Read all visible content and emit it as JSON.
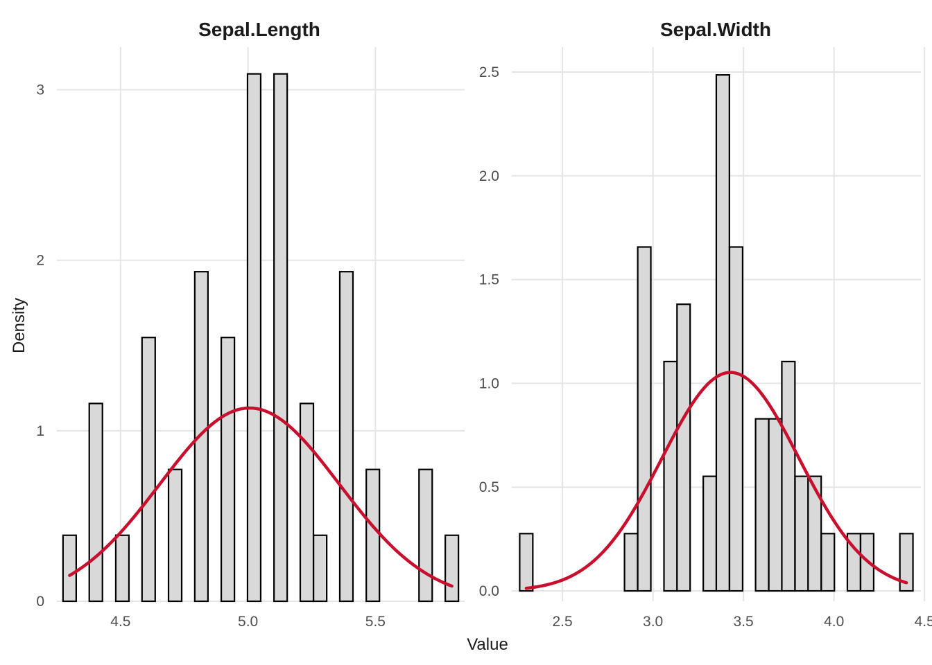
{
  "chart_data": [
    {
      "type": "bar",
      "title": "Sepal.Length",
      "xlabel": "Value",
      "ylabel": "Density",
      "xlim": [
        4.25,
        5.85
      ],
      "ylim": [
        0,
        3.25
      ],
      "x_ticks": [
        4.5,
        5.0,
        5.5
      ],
      "x_tick_labels": [
        "4.5",
        "5.0",
        "5.5"
      ],
      "y_ticks": [
        0,
        1,
        2,
        3
      ],
      "y_tick_labels": [
        "0",
        "1",
        "2",
        "3"
      ],
      "bin_width": 0.05172,
      "bins": [
        {
          "x": 4.3,
          "density": 0.387
        },
        {
          "x": 4.352,
          "density": 0
        },
        {
          "x": 4.403,
          "density": 1.16
        },
        {
          "x": 4.455,
          "density": 0
        },
        {
          "x": 4.507,
          "density": 0.387
        },
        {
          "x": 4.559,
          "density": 0
        },
        {
          "x": 4.61,
          "density": 1.547
        },
        {
          "x": 4.662,
          "density": 0
        },
        {
          "x": 4.714,
          "density": 0.773
        },
        {
          "x": 4.766,
          "density": 0
        },
        {
          "x": 4.817,
          "density": 1.933
        },
        {
          "x": 4.869,
          "density": 0
        },
        {
          "x": 4.921,
          "density": 1.547
        },
        {
          "x": 4.972,
          "density": 0
        },
        {
          "x": 5.024,
          "density": 3.093
        },
        {
          "x": 5.076,
          "density": 0
        },
        {
          "x": 5.128,
          "density": 3.093
        },
        {
          "x": 5.179,
          "density": 0
        },
        {
          "x": 5.231,
          "density": 1.16
        },
        {
          "x": 5.283,
          "density": 0.387
        },
        {
          "x": 5.334,
          "density": 0
        },
        {
          "x": 5.386,
          "density": 1.933
        },
        {
          "x": 5.438,
          "density": 0
        },
        {
          "x": 5.49,
          "density": 0.773
        },
        {
          "x": 5.541,
          "density": 0
        },
        {
          "x": 5.593,
          "density": 0
        },
        {
          "x": 5.645,
          "density": 0
        },
        {
          "x": 5.697,
          "density": 0.773
        },
        {
          "x": 5.748,
          "density": 0
        },
        {
          "x": 5.8,
          "density": 0.387
        }
      ],
      "normal_curve": {
        "mean": 5.006,
        "sd": 0.352,
        "x_from": 4.3,
        "x_to": 5.8
      }
    },
    {
      "type": "bar",
      "title": "Sepal.Width",
      "xlabel": "Value",
      "ylabel": "Density",
      "xlim": [
        2.22,
        4.48
      ],
      "ylim": [
        -0.05,
        2.62
      ],
      "x_ticks": [
        2.5,
        3.0,
        3.5,
        4.0,
        4.5
      ],
      "x_tick_labels": [
        "2.5",
        "3.0",
        "3.5",
        "4.0",
        "4.5"
      ],
      "y_ticks": [
        0,
        0.5,
        1.0,
        1.5,
        2.0,
        2.5
      ],
      "y_tick_labels": [
        "0.0",
        "0.5",
        "1.0",
        "1.5",
        "2.0",
        "2.5"
      ],
      "bin_width": 0.07241,
      "bins": [
        {
          "x": 2.3,
          "density": 0.276
        },
        {
          "x": 2.372,
          "density": 0
        },
        {
          "x": 2.445,
          "density": 0
        },
        {
          "x": 2.517,
          "density": 0
        },
        {
          "x": 2.59,
          "density": 0
        },
        {
          "x": 2.662,
          "density": 0
        },
        {
          "x": 2.734,
          "density": 0
        },
        {
          "x": 2.807,
          "density": 0
        },
        {
          "x": 2.879,
          "density": 0.276
        },
        {
          "x": 2.952,
          "density": 1.657
        },
        {
          "x": 3.024,
          "density": 0
        },
        {
          "x": 3.097,
          "density": 1.105
        },
        {
          "x": 3.169,
          "density": 1.381
        },
        {
          "x": 3.241,
          "density": 0
        },
        {
          "x": 3.314,
          "density": 0.552
        },
        {
          "x": 3.386,
          "density": 2.486
        },
        {
          "x": 3.459,
          "density": 1.657
        },
        {
          "x": 3.531,
          "density": 0
        },
        {
          "x": 3.603,
          "density": 0.829
        },
        {
          "x": 3.676,
          "density": 0.829
        },
        {
          "x": 3.748,
          "density": 1.105
        },
        {
          "x": 3.821,
          "density": 0.552
        },
        {
          "x": 3.893,
          "density": 0.552
        },
        {
          "x": 3.966,
          "density": 0.276
        },
        {
          "x": 4.038,
          "density": 0
        },
        {
          "x": 4.11,
          "density": 0.276
        },
        {
          "x": 4.183,
          "density": 0.276
        },
        {
          "x": 4.255,
          "density": 0
        },
        {
          "x": 4.328,
          "density": 0
        },
        {
          "x": 4.4,
          "density": 0.276
        }
      ],
      "normal_curve": {
        "mean": 3.428,
        "sd": 0.379,
        "x_from": 2.3,
        "x_to": 4.4
      }
    }
  ],
  "axis_titles": {
    "x": "Value",
    "y": "Density"
  },
  "colors": {
    "bar_fill": "#d9d9d9",
    "bar_stroke": "#000000",
    "curve": "#c8102e",
    "grid": "#e5e5e5"
  }
}
